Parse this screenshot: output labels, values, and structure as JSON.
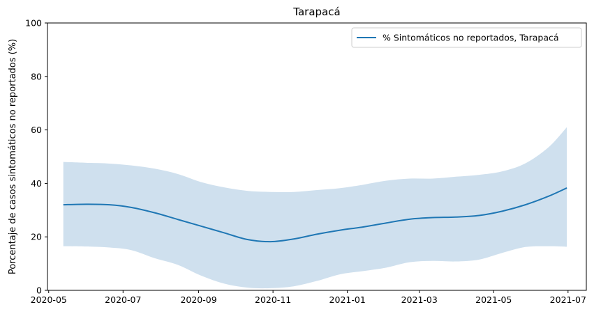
{
  "chart_data": {
    "type": "line",
    "title": "Tarapacá",
    "xlabel": "",
    "ylabel": "Porcentaje de casos sintomáticos no reportados (%)",
    "ylim": [
      0,
      100
    ],
    "xlim": [
      "2020-04-30",
      "2021-07-16"
    ],
    "legend_position": "top-right",
    "grid": false,
    "y_ticks": [
      0,
      20,
      40,
      60,
      80,
      100
    ],
    "x_ticks": [
      "2020-05-01",
      "2020-07-01",
      "2020-09-01",
      "2020-11-01",
      "2021-01-01",
      "2021-03-01",
      "2021-05-01",
      "2021-07-01"
    ],
    "x_tick_labels": [
      "2020-05",
      "2020-07",
      "2020-09",
      "2020-11",
      "2021-01",
      "2021-03",
      "2021-05",
      "2021-07"
    ],
    "colors": {
      "line": "#1f77b4",
      "band": "#cfe0ee"
    },
    "series": [
      {
        "name": "% Sintomáticos no reportados, Tarapacá",
        "x": [
          "2020-05-13",
          "2020-06-01",
          "2020-06-20",
          "2020-07-08",
          "2020-07-27",
          "2020-08-15",
          "2020-09-03",
          "2020-09-22",
          "2020-10-11",
          "2020-10-30",
          "2020-11-18",
          "2020-12-07",
          "2020-12-26",
          "2021-01-14",
          "2021-02-02",
          "2021-02-21",
          "2021-03-12",
          "2021-03-31",
          "2021-04-19",
          "2021-05-08",
          "2021-05-27",
          "2021-06-15",
          "2021-06-30"
        ],
        "y": [
          32.0,
          32.2,
          32.0,
          31.0,
          29.0,
          26.5,
          24.0,
          21.5,
          19.0,
          18.2,
          19.2,
          21.0,
          22.5,
          23.7,
          25.2,
          26.6,
          27.2,
          27.4,
          28.0,
          29.6,
          32.0,
          35.2,
          38.3
        ],
        "lower": [
          16.5,
          16.4,
          16.0,
          15.0,
          12.0,
          9.5,
          5.5,
          2.5,
          1.0,
          0.8,
          1.5,
          3.5,
          6.0,
          7.2,
          8.5,
          10.5,
          11.0,
          10.8,
          11.5,
          14.0,
          16.2,
          16.5,
          16.3
        ],
        "upper": [
          48.0,
          47.7,
          47.4,
          46.7,
          45.5,
          43.5,
          40.5,
          38.5,
          37.2,
          36.8,
          36.8,
          37.5,
          38.2,
          39.5,
          41.0,
          41.8,
          41.8,
          42.5,
          43.2,
          44.5,
          47.5,
          53.5,
          61.0
        ]
      }
    ]
  }
}
